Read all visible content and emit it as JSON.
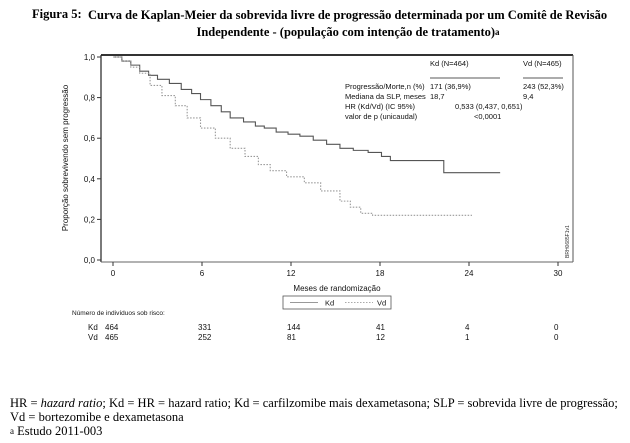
{
  "figure": {
    "label": "Figura 5:",
    "title_line1": "Curva de Kaplan-Meier da sobrevida livre de progressão determinada por um Comitê de Revisão",
    "title_line2": "Independente - (população com intenção de tratamento)",
    "title_superscript": "a"
  },
  "stats_table": {
    "col_kd": "Kd (N=464)",
    "col_vd": "Vd (N=465)",
    "rows": [
      {
        "label": "Progressão/Morte,n (%)",
        "kd": "171  (36,9%)",
        "vd": "243  (52,3%)"
      },
      {
        "label": "Mediana da SLP, meses",
        "kd": "18,7",
        "vd": "9,4"
      },
      {
        "label": "HR (Kd/Vd) (IC 95%)",
        "combined": "0,533 (0,437, 0,651)"
      },
      {
        "label": "valor de p (unicaudal)",
        "combined": "<0,0001"
      }
    ]
  },
  "side_code": "BRH0685F1v1",
  "risk_table": {
    "title": "Número de indivíduos sob risco:",
    "rows": [
      {
        "arm": "Kd",
        "values": [
          "464",
          "331",
          "144",
          "41",
          "4",
          "0"
        ]
      },
      {
        "arm": "Vd",
        "values": [
          "465",
          "252",
          "81",
          "12",
          "1",
          "0"
        ]
      }
    ]
  },
  "footnotes": {
    "line1_pre": "HR = ",
    "line1_italic": "hazard ratio",
    "line1_post": "; Kd = HR = hazard ratio; Kd = carfilzomibe mais dexametasona; SLP = sobrevida livre de progressão;",
    "line2": "Vd = bortezomibe e dexametasona",
    "line3_sup": "a",
    "line3": " Estudo 2011-003"
  },
  "chart_data": {
    "type": "line",
    "title": "Curva de Kaplan-Meier da sobrevida livre de progressão",
    "xlabel": "Meses de randomização",
    "ylabel": "Proporção sobrevivendo sem progressão",
    "xlim": [
      0,
      30
    ],
    "ylim": [
      0,
      1
    ],
    "xticks": [
      0,
      6,
      12,
      18,
      24,
      30
    ],
    "xtick_labels": [
      "0",
      "6",
      "12",
      "18",
      "24",
      "30"
    ],
    "yticks": [
      0,
      0.2,
      0.4,
      0.6,
      0.8,
      1.0
    ],
    "ytick_labels": [
      "0,0",
      "0,2",
      "0,4",
      "0,6",
      "0,8",
      "1,0"
    ],
    "grid": false,
    "legend": {
      "placement": "bottom-center",
      "entries": [
        "Kd",
        "Vd"
      ]
    },
    "series": [
      {
        "name": "Kd",
        "style": "solid",
        "color": "#555555",
        "x": [
          0,
          0.6,
          1.2,
          1.8,
          2.4,
          3.0,
          3.8,
          4.6,
          5.3,
          5.9,
          6.6,
          7.3,
          7.9,
          8.8,
          9.6,
          10.2,
          11.0,
          11.8,
          12.6,
          13.5,
          14.4,
          15.3,
          16.2,
          17.2,
          18.1,
          18.7,
          22.3,
          26.1
        ],
        "y": [
          1.0,
          0.98,
          0.96,
          0.93,
          0.91,
          0.89,
          0.87,
          0.84,
          0.82,
          0.79,
          0.76,
          0.73,
          0.7,
          0.68,
          0.66,
          0.65,
          0.63,
          0.62,
          0.61,
          0.59,
          0.57,
          0.55,
          0.54,
          0.53,
          0.51,
          0.49,
          0.43,
          0.43
        ]
      },
      {
        "name": "Vd",
        "style": "dashed",
        "color": "#999999",
        "x": [
          0,
          0.6,
          1.2,
          1.8,
          2.5,
          3.3,
          4.2,
          5.0,
          5.9,
          6.9,
          7.9,
          8.9,
          9.8,
          10.6,
          11.7,
          12.9,
          14.0,
          15.3,
          16.0,
          16.7,
          17.5,
          24.2
        ],
        "y": [
          1.0,
          0.98,
          0.95,
          0.92,
          0.86,
          0.81,
          0.76,
          0.7,
          0.65,
          0.6,
          0.55,
          0.51,
          0.47,
          0.44,
          0.41,
          0.38,
          0.34,
          0.29,
          0.26,
          0.23,
          0.22,
          0.22
        ]
      }
    ],
    "annotations": [
      "Kd (N=464)",
      "Vd (N=465)"
    ]
  }
}
